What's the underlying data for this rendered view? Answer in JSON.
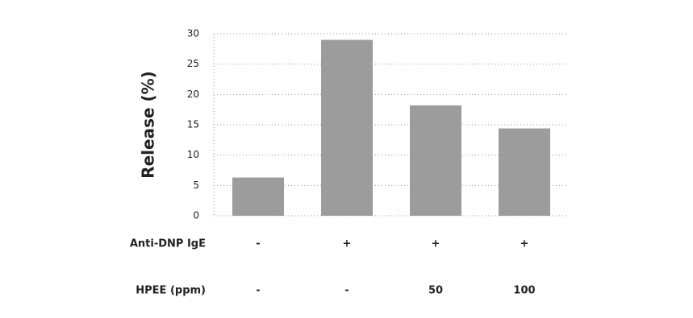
{
  "chart_data": {
    "type": "bar",
    "y_label": "Release (%)",
    "values": [
      6.3,
      29,
      18.2,
      14.4
    ],
    "color": "#9c9c9c",
    "ylim": [
      0,
      30
    ],
    "yticks": [
      0,
      5,
      10,
      15,
      20,
      25,
      30
    ],
    "grid": true,
    "condition_rows": [
      {
        "label": "Anti-DNP IgE",
        "values": [
          "-",
          "+",
          "+",
          "+"
        ]
      },
      {
        "label": "HPEE (ppm)",
        "values": [
          "-",
          "-",
          "50",
          "100"
        ]
      }
    ]
  }
}
